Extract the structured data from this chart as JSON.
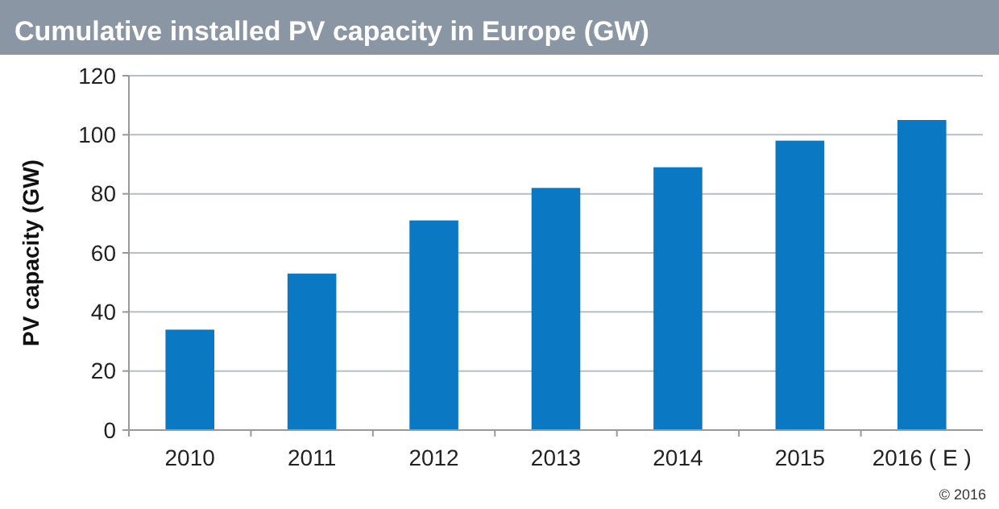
{
  "chart_data": {
    "type": "bar",
    "title": "Cumulative installed PV capacity in Europe (GW)",
    "ylabel": "PV capacity (GW)",
    "categories": [
      "2010",
      "2011",
      "2012",
      "2013",
      "2014",
      "2015",
      "2016 ( E )"
    ],
    "values": [
      34,
      53,
      71,
      82,
      89,
      98,
      105
    ],
    "color": "#0a78c2",
    "ylim": [
      0,
      120
    ],
    "yticks": [
      0,
      20,
      40,
      60,
      80,
      100,
      120
    ],
    "grid": "y",
    "annotations": [
      "© 2016"
    ]
  }
}
